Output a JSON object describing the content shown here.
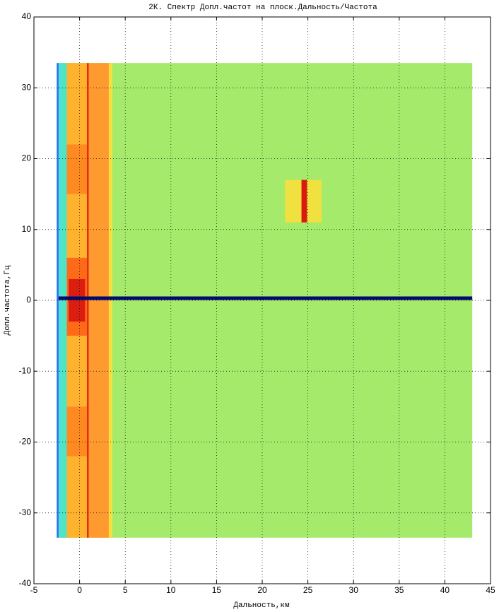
{
  "chart_data": {
    "type": "heatmap",
    "title": "2К. Спектр Допл.частот на плоск.Дальность/Частота",
    "xlabel": "Дальность,км",
    "ylabel": "Допл.частота,Гц",
    "xlim": [
      -5,
      45
    ],
    "ylim": [
      -40,
      40
    ],
    "xticks": [
      -5,
      0,
      5,
      10,
      15,
      20,
      25,
      30,
      35,
      40,
      45
    ],
    "yticks": [
      -40,
      -30,
      -20,
      -10,
      0,
      10,
      20,
      30,
      40
    ],
    "grid": true,
    "regions": [
      {
        "x": [
          -2.3,
          43
        ],
        "y": [
          -33.5,
          33.5
        ],
        "color": "#a6ea6c"
      },
      {
        "x": [
          -2.3,
          -1.4
        ],
        "y": [
          -33.5,
          33.5
        ],
        "color": "#4fe3c8"
      },
      {
        "x": [
          -1.4,
          0.8
        ],
        "y": [
          -33.5,
          33.5
        ],
        "color": "#ffb22e"
      },
      {
        "x": [
          -1.4,
          0.8
        ],
        "y": [
          15,
          22
        ],
        "color": "#ff8a22"
      },
      {
        "x": [
          -1.4,
          0.8
        ],
        "y": [
          -22,
          -15
        ],
        "color": "#ff8a22"
      },
      {
        "x": [
          -1.4,
          0.8
        ],
        "y": [
          -5,
          6
        ],
        "color": "#ff6a18"
      },
      {
        "x": [
          -1.2,
          0.6
        ],
        "y": [
          -3,
          3
        ],
        "color": "#dc1e10"
      },
      {
        "x": [
          0.8,
          1.0
        ],
        "y": [
          -33.5,
          33.5
        ],
        "color": "#e03010"
      },
      {
        "x": [
          1.0,
          3.2
        ],
        "y": [
          -33.5,
          33.5
        ],
        "color": "#ff9a30"
      },
      {
        "x": [
          3.2,
          3.6
        ],
        "y": [
          -33.5,
          33.5
        ],
        "color": "#f4e040"
      },
      {
        "x": [
          -2.5,
          -2.3
        ],
        "y": [
          -33.5,
          33.5
        ],
        "color": "#1e6fff"
      },
      {
        "x": [
          22.5,
          26.5
        ],
        "y": [
          11,
          17
        ],
        "color": "#f0e040"
      },
      {
        "x": [
          24.3,
          24.9
        ],
        "y": [
          11,
          17
        ],
        "color": "#d81a10"
      },
      {
        "x": [
          -2.3,
          43
        ],
        "y": [
          0.05,
          0.55
        ],
        "color": "#000a6e"
      }
    ]
  }
}
